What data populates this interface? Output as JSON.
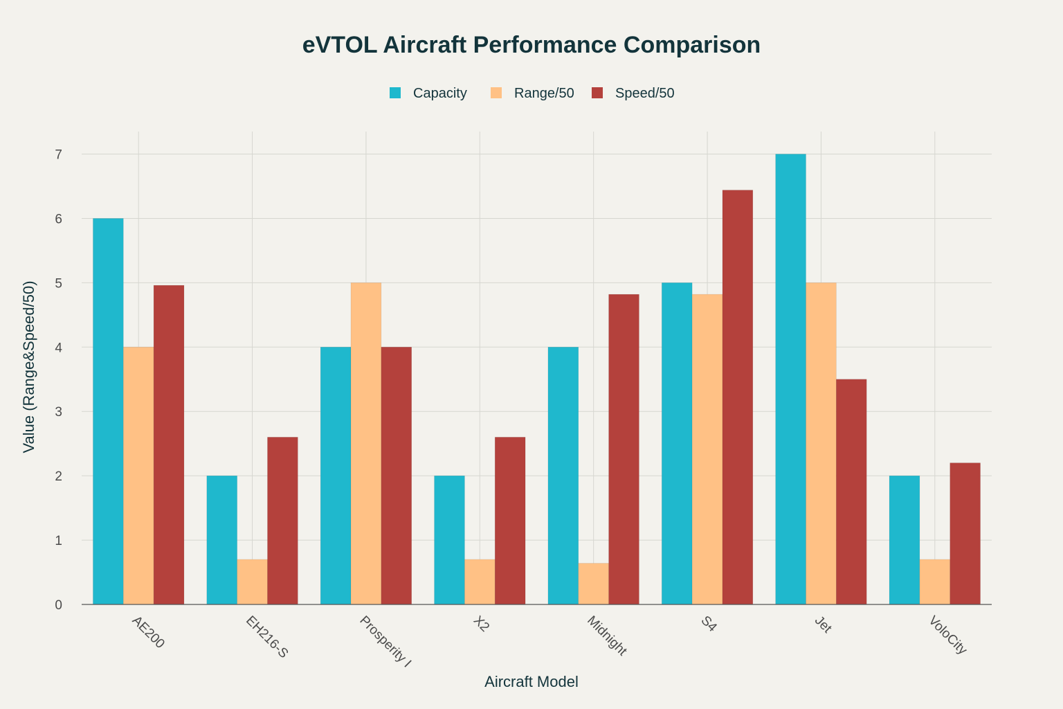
{
  "chart_data": {
    "type": "bar",
    "title": "eVTOL Aircraft Performance Comparison",
    "xlabel": "Aircraft Model",
    "ylabel": "Value (Range&Speed/50)",
    "ylim": [
      0,
      7.35
    ],
    "yticks": [
      0,
      1,
      2,
      3,
      4,
      5,
      6,
      7
    ],
    "grid": true,
    "legend_position": "top-center",
    "categories": [
      "AE200",
      "EH216-S",
      "Prosperity I",
      "X2",
      "Midnight",
      "S4",
      "Jet",
      "VoloCity"
    ],
    "series": [
      {
        "name": "Capacity",
        "color": "#1fb8cd",
        "values": [
          6,
          2,
          4,
          2,
          4,
          5,
          7,
          2
        ]
      },
      {
        "name": "Range/50",
        "color": "#ffc185",
        "values": [
          4,
          0.7,
          5,
          0.7,
          0.64,
          4.82,
          5,
          0.7
        ]
      },
      {
        "name": "Speed/50",
        "color": "#b4413c",
        "values": [
          4.96,
          2.6,
          4,
          2.6,
          4.82,
          6.44,
          3.5,
          2.2
        ]
      }
    ]
  }
}
